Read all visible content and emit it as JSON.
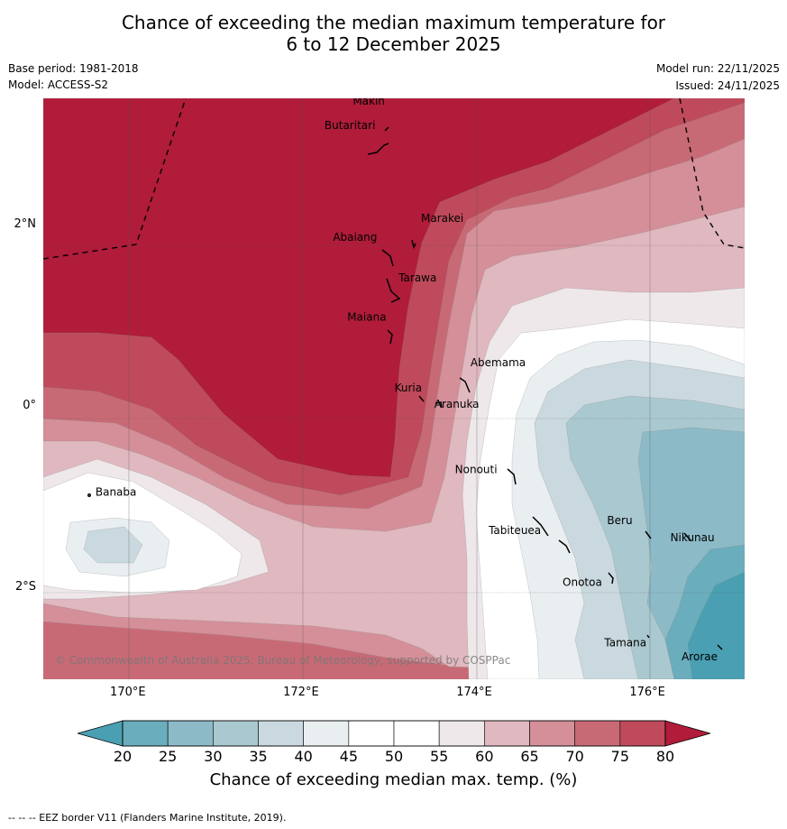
{
  "title": {
    "line1": "Chance of exceeding the median maximum temperature for",
    "line2": "6 to 12 December 2025"
  },
  "meta": {
    "base_period": "Base period: 1981-2018",
    "model": "Model: ACCESS-S2",
    "model_run": "Model run: 22/11/2025",
    "issued": "Issued: 24/11/2025"
  },
  "map": {
    "lon_range": [
      169,
      177.1
    ],
    "lat_range": [
      -3.0,
      3.4
    ],
    "copyright": "© Commonwealth of Australia 2025, Bureau of Meteorology, supported by COSPPac",
    "x_ticks": [
      {
        "value": 170,
        "label": "170°E"
      },
      {
        "value": 172,
        "label": "172°E"
      },
      {
        "value": 174,
        "label": "174°E"
      },
      {
        "value": 176,
        "label": "176°E"
      }
    ],
    "y_ticks": [
      {
        "value": 2,
        "label": "2°N"
      },
      {
        "value": 0,
        "label": "0°"
      },
      {
        "value": -2,
        "label": "2°S"
      }
    ],
    "islands": [
      {
        "name": "Makin",
        "lon": 172.97,
        "lat": 3.33
      },
      {
        "name": "Butaritari",
        "lon": 172.82,
        "lat": 3.06
      },
      {
        "name": "Marakei",
        "lon": 173.3,
        "lat": 2.0
      },
      {
        "name": "Abaiang",
        "lon": 172.97,
        "lat": 1.82
      },
      {
        "name": "Tarawa",
        "lon": 173.0,
        "lat": 1.42
      },
      {
        "name": "Maiana",
        "lon": 173.0,
        "lat": 0.93
      },
      {
        "name": "Abemama",
        "lon": 173.85,
        "lat": 0.4
      },
      {
        "name": "Kuria",
        "lon": 173.4,
        "lat": 0.22
      },
      {
        "name": "Aranuka",
        "lon": 173.62,
        "lat": 0.17
      },
      {
        "name": "Nonouti",
        "lon": 174.4,
        "lat": -0.65
      },
      {
        "name": "Banaba",
        "lon": 169.54,
        "lat": -0.86
      },
      {
        "name": "Tabiteuea",
        "lon": 174.8,
        "lat": -1.3
      },
      {
        "name": "Beru",
        "lon": 175.98,
        "lat": -1.33
      },
      {
        "name": "Nikunau",
        "lon": 176.45,
        "lat": -1.35
      },
      {
        "name": "Onotoa",
        "lon": 175.57,
        "lat": -1.85
      },
      {
        "name": "Tamana",
        "lon": 175.98,
        "lat": -2.5
      },
      {
        "name": "Arorae",
        "lon": 176.82,
        "lat": -2.65
      }
    ]
  },
  "colorbar": {
    "title": "Chance of exceeding median max. temp. (%)",
    "ticks": [
      "20",
      "25",
      "30",
      "35",
      "40",
      "45",
      "50",
      "55",
      "60",
      "65",
      "70",
      "75",
      "80"
    ],
    "colors": {
      "lt20": "#4a9fb2",
      "b20_25": "#6aadbc",
      "b25_30": "#8cbac7",
      "b30_35": "#aac8cf",
      "b35_40": "#cad9df",
      "b40_45": "#e9eef1",
      "b45_55": "#ffffff",
      "b55_60": "#eee8ea",
      "b60_65": "#e0b8bf",
      "b65_70": "#d48f98",
      "b70_75": "#c86a75",
      "b75_80": "#be4a5b",
      "gt80": "#b01c3a"
    }
  },
  "footer": "--  --  -- EEZ border V11 (Flanders Marine Institute, 2019)."
}
